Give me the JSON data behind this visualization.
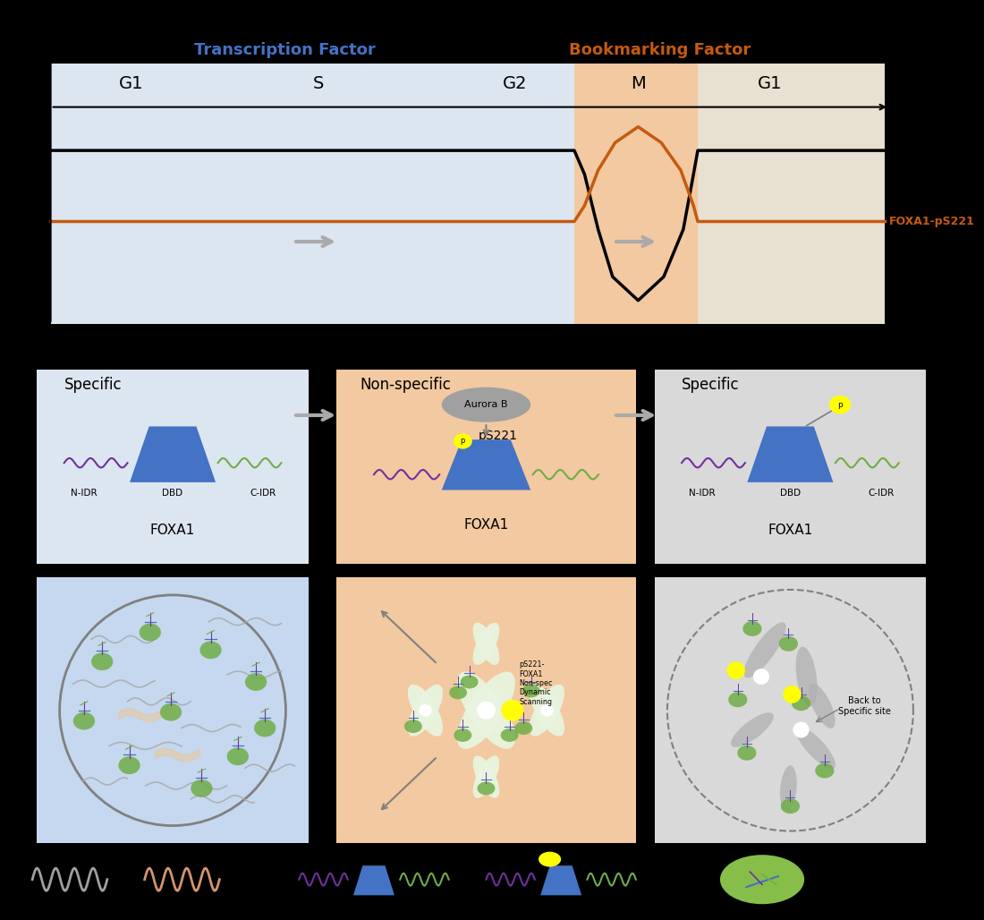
{
  "fig_bg": "#000000",
  "top_panel": {
    "bg_left": "#dce6f1",
    "bg_right": "#e8e0d0",
    "bg_m": "#f2c9a0",
    "phases": [
      "G1",
      "S",
      "G2",
      "M",
      "G1"
    ],
    "tf_label": "Transcription Factor",
    "tf_color": "#4472c4",
    "bm_label": "Bookmarking Factor",
    "bm_color": "#c55a11",
    "foxa1_label": "FOXA1-pS221",
    "foxa1_color": "#c55a11"
  },
  "panel_colors": {
    "left": "#dce6f1",
    "middle": "#f2c9a0",
    "right": "#d9d9d9",
    "left_bottom": "#c5d8ef",
    "middle_bottom": "#f2c9a0",
    "right_bottom": "#d9d9d9"
  },
  "labels": {
    "specific": "Specific",
    "non_specific": "Non-specific",
    "aurora_b": "Aurora B",
    "ps221": "pS221",
    "foxa1": "FOXA1",
    "n_idr": "N-IDR",
    "dbd": "DBD",
    "c_idr": "C-IDR",
    "back_to": "Back to\nSpecific site",
    "ps221_foxa1": "pS221-\nFOXA1\nNon-spec\nDynamic\nScanning"
  },
  "colors": {
    "blue_shape": "#4472c4",
    "purple_line": "#7030a0",
    "green_line": "#70ad47",
    "yellow_dot": "#ffff00",
    "gray_arrow": "#808080",
    "dark_gray": "#404040",
    "orange_brown": "#c55a11",
    "light_green": "#92d050",
    "green_circle": "#70ad47",
    "peach_line": "#d4956a",
    "gray_line": "#a0a0a0",
    "chrom_color": "#e8f5e0",
    "cell_nucleus_edge": "#808080",
    "white": "#ffffff",
    "arrow_gray": "#aaaaaa",
    "aurora_gray": "#a0a0a0",
    "deco_gray": "#b0b0b0"
  }
}
